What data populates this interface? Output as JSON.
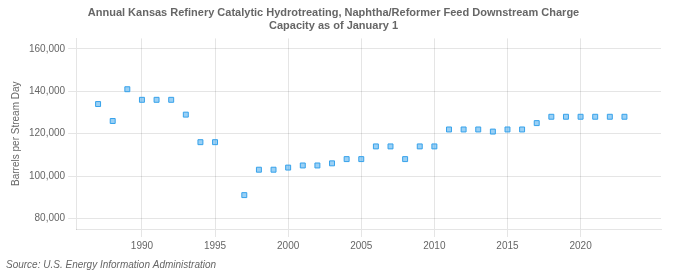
{
  "chart_data": {
    "type": "scatter",
    "title": "Annual Kansas Refinery Catalytic Hydrotreating, Naphtha/Reformer Feed Downstream Charge\nCapacity as of January 1",
    "ylabel": "Barrels per Stream Day",
    "annotations": [
      "Source: U.S. Energy Information Administration"
    ],
    "x": [
      1987,
      1988,
      1989,
      1990,
      1991,
      1992,
      1993,
      1994,
      1995,
      1997,
      1998,
      1999,
      2000,
      2001,
      2002,
      2003,
      2004,
      2005,
      2006,
      2007,
      2008,
      2009,
      2010,
      2011,
      2012,
      2013,
      2014,
      2015,
      2016,
      2017,
      2018,
      2019,
      2020,
      2021,
      2022,
      2023
    ],
    "values": [
      134000,
      126000,
      141000,
      136000,
      136000,
      136000,
      129000,
      116000,
      116000,
      91000,
      103000,
      103000,
      104000,
      105000,
      105000,
      106000,
      108000,
      108000,
      114000,
      114000,
      108000,
      114000,
      114000,
      122000,
      122000,
      122000,
      121000,
      122000,
      122000,
      125000,
      128000,
      128000,
      128000,
      128000,
      128000,
      128000
    ],
    "xlim": [
      1985.5,
      2025.5
    ],
    "xticks": [
      1990,
      1995,
      2000,
      2005,
      2010,
      2015,
      2020
    ],
    "ylim": [
      75000,
      165000
    ],
    "yticks": [
      {
        "value": 80000,
        "label": "80,000"
      },
      {
        "value": 100000,
        "label": "100,000"
      },
      {
        "value": 120000,
        "label": "120,000"
      },
      {
        "value": 140000,
        "label": "140,000"
      },
      {
        "value": 160000,
        "label": "160,000"
      }
    ],
    "marker": "square",
    "grid": true
  }
}
